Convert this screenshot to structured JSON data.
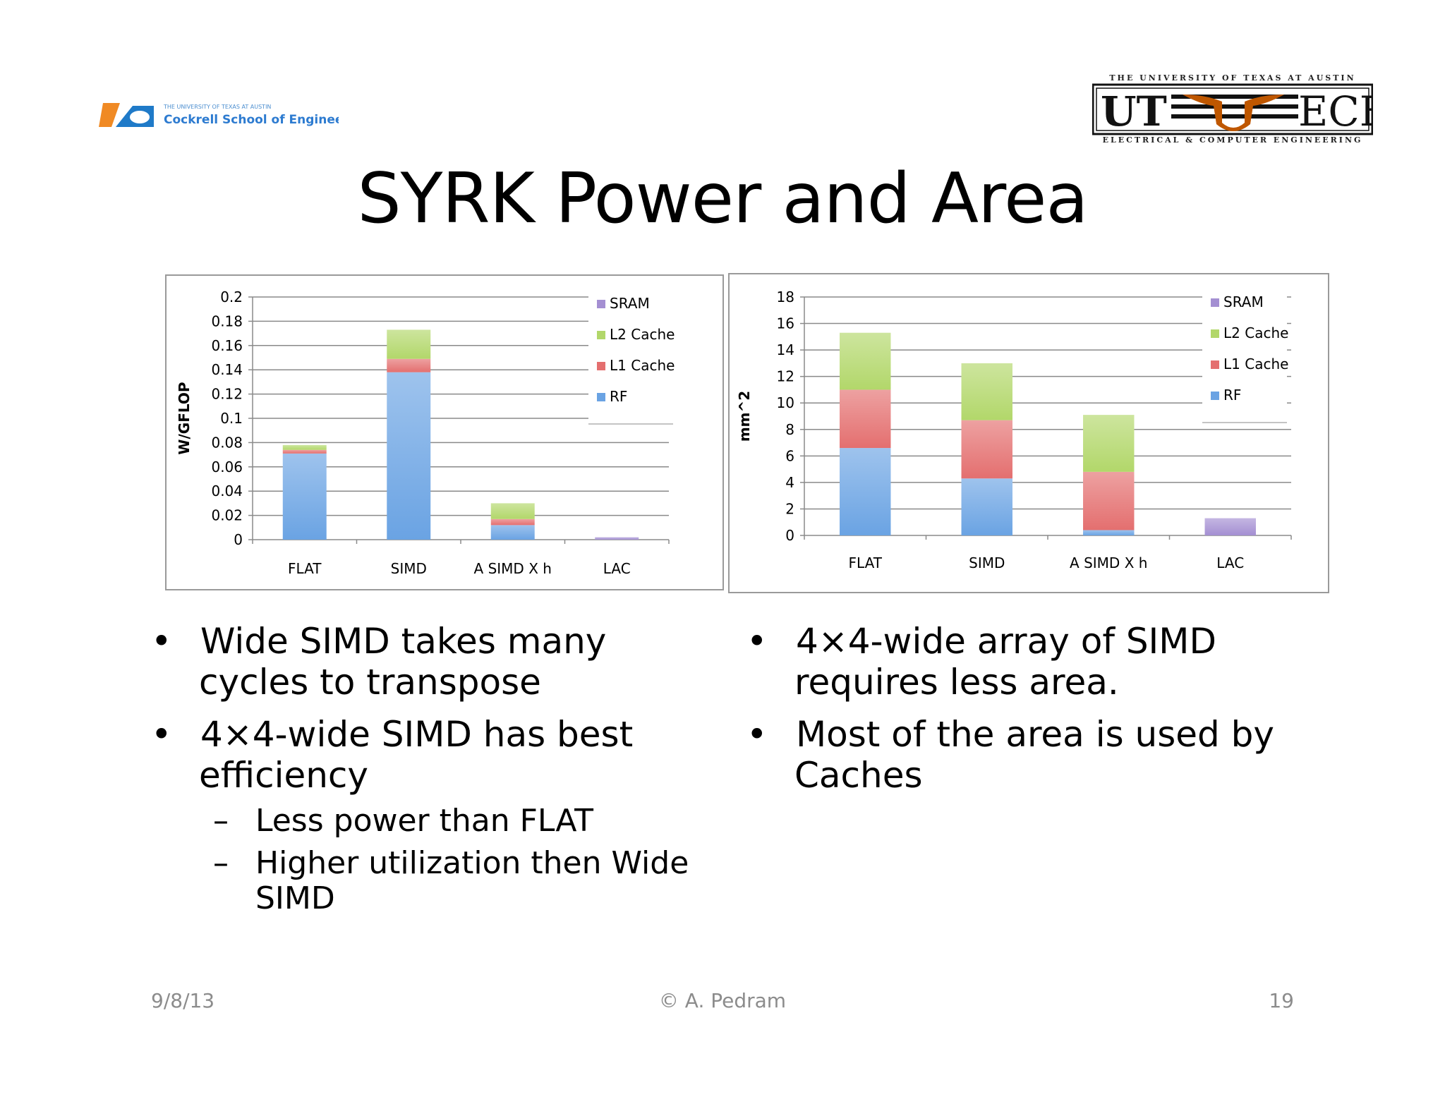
{
  "slide": {
    "title": "SYRK Power and Area",
    "logos": {
      "left_text_small": "THE UNIVERSITY OF TEXAS AT AUSTIN",
      "left_text": "Cockrell School of Engineering",
      "right_top": "THE UNIVERSITY OF TEXAS AT AUSTIN",
      "right_ut": "UT",
      "right_ece": "ECE",
      "right_bottom": "ELECTRICAL & COMPUTER ENGINEERING"
    },
    "left_bullets": [
      {
        "line1": "Wide SIMD takes many",
        "line2": "cycles to transpose"
      },
      {
        "line1": "4×4-wide SIMD has best",
        "line2": "efficiency"
      }
    ],
    "left_subbullets": [
      {
        "line1": "Less power than FLAT",
        "line2": ""
      },
      {
        "line1": "Higher utilization then Wide",
        "line2": "SIMD"
      }
    ],
    "right_bullets": [
      {
        "line1": "4×4-wide array of SIMD",
        "line2": "requires less area."
      },
      {
        "line1": "Most of the area is used by",
        "line2": "Caches"
      }
    ],
    "bullet_glyph": "•",
    "dash_glyph": "–",
    "footer": {
      "date": "9/8/13",
      "author": "© A. Pedram",
      "page": "19"
    }
  },
  "colors": {
    "SRAM": "#a48fd2",
    "L2 Cache": "#b2d76a",
    "L1 Cache": "#e46f6f",
    "RF": "#6aa3e3",
    "grid": "#8a8a8a",
    "ut_orange": "#bf5700"
  },
  "chart_data": [
    {
      "type": "bar",
      "stacked": true,
      "categories": [
        "FLAT",
        "SIMD",
        "A SIMD X h",
        "LAC"
      ],
      "series": [
        {
          "name": "RF",
          "values": [
            0.071,
            0.138,
            0.012,
            0.0
          ]
        },
        {
          "name": "L1 Cache",
          "values": [
            0.003,
            0.011,
            0.005,
            0.0
          ]
        },
        {
          "name": "L2 Cache",
          "values": [
            0.004,
            0.024,
            0.013,
            0.0
          ]
        },
        {
          "name": "SRAM",
          "values": [
            0.0,
            0.0,
            0.0,
            0.002
          ]
        }
      ],
      "ylabel": "W/GFLOP",
      "ylim": [
        0,
        0.2
      ],
      "yticks": [
        "0",
        "0.02",
        "0.04",
        "0.06",
        "0.08",
        "0.1",
        "0.12",
        "0.14",
        "0.16",
        "0.18",
        "0.2"
      ],
      "legend": [
        "SRAM",
        "L2 Cache",
        "L1 Cache",
        "RF"
      ],
      "legend_position": "top-right",
      "grid": true
    },
    {
      "type": "bar",
      "stacked": true,
      "categories": [
        "FLAT",
        "SIMD",
        "A SIMD X h",
        "LAC"
      ],
      "series": [
        {
          "name": "RF",
          "values": [
            6.6,
            4.3,
            0.4,
            0.0
          ]
        },
        {
          "name": "L1 Cache",
          "values": [
            4.4,
            4.4,
            4.4,
            0.0
          ]
        },
        {
          "name": "L2 Cache",
          "values": [
            4.3,
            4.3,
            4.3,
            0.0
          ]
        },
        {
          "name": "SRAM",
          "values": [
            0.0,
            0.0,
            0.0,
            1.3
          ]
        }
      ],
      "ylabel": "mm^2",
      "ylim": [
        0,
        18
      ],
      "yticks": [
        "0",
        "2",
        "4",
        "6",
        "8",
        "10",
        "12",
        "14",
        "16",
        "18"
      ],
      "legend": [
        "SRAM",
        "L2 Cache",
        "L1 Cache",
        "RF"
      ],
      "legend_position": "top-right",
      "grid": true
    }
  ]
}
